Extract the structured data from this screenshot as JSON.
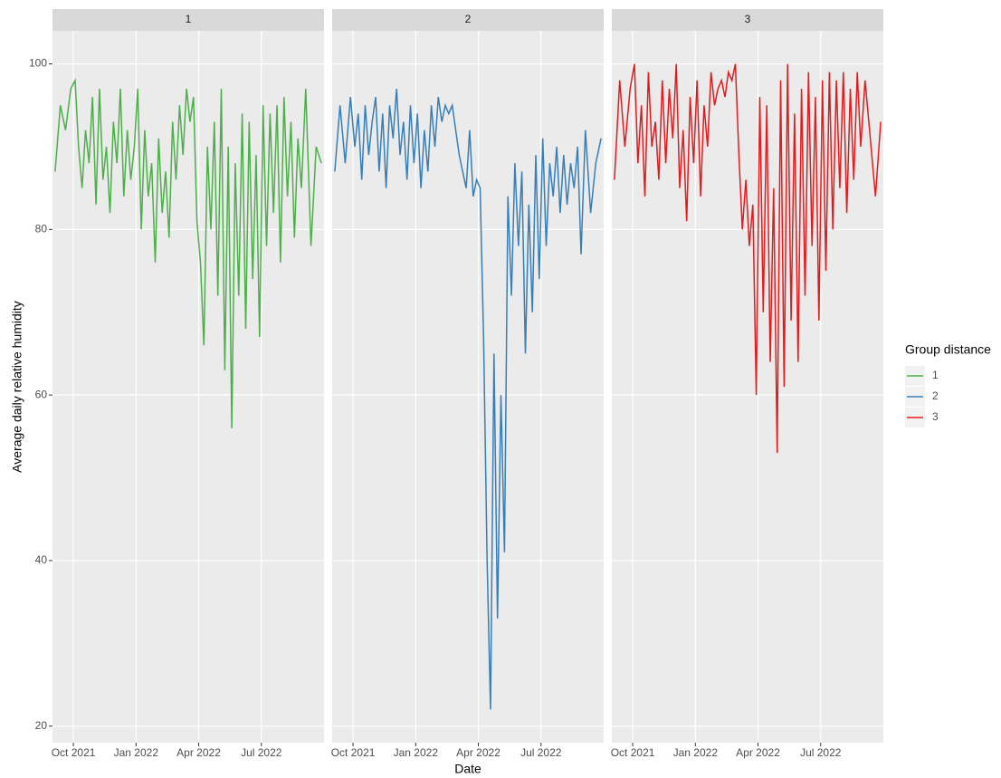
{
  "chart_data": {
    "type": "line",
    "x_label": "Date",
    "y_label": "Average daily relative humidity",
    "legend_title": "Group distance",
    "legend_position": "right",
    "grid": true,
    "xlim": [
      "2021-09",
      "2022-10"
    ],
    "xticks": [
      {
        "value": "2021-10",
        "label": "Oct 2021"
      },
      {
        "value": "2022-01",
        "label": "Jan 2022"
      },
      {
        "value": "2022-04",
        "label": "Apr 2022"
      },
      {
        "value": "2022-07",
        "label": "Jul 2022"
      }
    ],
    "ylim": [
      18,
      104
    ],
    "yticks": [
      20,
      40,
      60,
      80,
      100
    ],
    "x": [
      "2021-09",
      "2021-09",
      "2021-09",
      "2021-09",
      "2021-10",
      "2021-10",
      "2021-10",
      "2021-10",
      "2021-10",
      "2021-10",
      "2021-11",
      "2021-11",
      "2021-11",
      "2021-11",
      "2021-11",
      "2021-11",
      "2021-12",
      "2021-12",
      "2021-12",
      "2021-12",
      "2021-12",
      "2021-12",
      "2022-01",
      "2022-01",
      "2022-01",
      "2022-01",
      "2022-01",
      "2022-01",
      "2022-02",
      "2022-02",
      "2022-02",
      "2022-02",
      "2022-02",
      "2022-02",
      "2022-03",
      "2022-03",
      "2022-03",
      "2022-03",
      "2022-03",
      "2022-03",
      "2022-04",
      "2022-04",
      "2022-04",
      "2022-04",
      "2022-04",
      "2022-04",
      "2022-05",
      "2022-05",
      "2022-05",
      "2022-05",
      "2022-05",
      "2022-05",
      "2022-06",
      "2022-06",
      "2022-06",
      "2022-06",
      "2022-06",
      "2022-06",
      "2022-07",
      "2022-07",
      "2022-07",
      "2022-07",
      "2022-07",
      "2022-07",
      "2022-08",
      "2022-08",
      "2022-08",
      "2022-08",
      "2022-08",
      "2022-08",
      "2022-09",
      "2022-09",
      "2022-09",
      "2022-09"
    ],
    "series": [
      {
        "name": "1",
        "color": "#4daf4a",
        "values": [
          87,
          95,
          92,
          97,
          98,
          90,
          85,
          92,
          88,
          96,
          83,
          97,
          86,
          90,
          82,
          93,
          88,
          97,
          84,
          92,
          86,
          90,
          97,
          80,
          92,
          84,
          88,
          76,
          91,
          82,
          87,
          79,
          93,
          86,
          95,
          89,
          97,
          93,
          96,
          81,
          76,
          66,
          90,
          80,
          93,
          72,
          97,
          63,
          90,
          56,
          88,
          72,
          94,
          68,
          93,
          74,
          89,
          67,
          95,
          78,
          94,
          82,
          95,
          76,
          96,
          84,
          93,
          79,
          91,
          85,
          97,
          78,
          90,
          88
        ]
      },
      {
        "name": "2",
        "color": "#377eb8",
        "values": [
          87,
          95,
          88,
          96,
          90,
          94,
          86,
          95,
          89,
          93,
          96,
          87,
          94,
          85,
          95,
          91,
          97,
          89,
          93,
          86,
          95,
          88,
          94,
          85,
          92,
          87,
          95,
          90,
          96,
          93,
          95,
          94,
          95,
          92,
          89,
          87,
          85,
          92,
          84,
          86,
          85,
          67,
          40,
          22,
          65,
          33,
          60,
          41,
          84,
          72,
          88,
          78,
          87,
          65,
          83,
          70,
          89,
          74,
          91,
          78,
          88,
          84,
          90,
          82,
          89,
          83,
          88,
          85,
          90,
          77,
          92,
          82,
          88,
          91
        ]
      },
      {
        "name": "3",
        "color": "#e41a1c",
        "values": [
          86,
          98,
          90,
          97,
          100,
          88,
          95,
          84,
          99,
          90,
          93,
          86,
          98,
          88,
          97,
          91,
          100,
          85,
          92,
          81,
          96,
          88,
          98,
          84,
          95,
          90,
          99,
          95,
          97,
          98,
          96,
          99,
          98,
          100,
          89,
          80,
          86,
          78,
          83,
          60,
          96,
          70,
          95,
          64,
          85,
          53,
          98,
          61,
          100,
          69,
          94,
          64,
          97,
          72,
          99,
          78,
          96,
          69,
          98,
          75,
          99,
          80,
          98,
          85,
          99,
          82,
          97,
          86,
          99,
          90,
          98,
          91,
          84,
          93
        ]
      }
    ]
  }
}
